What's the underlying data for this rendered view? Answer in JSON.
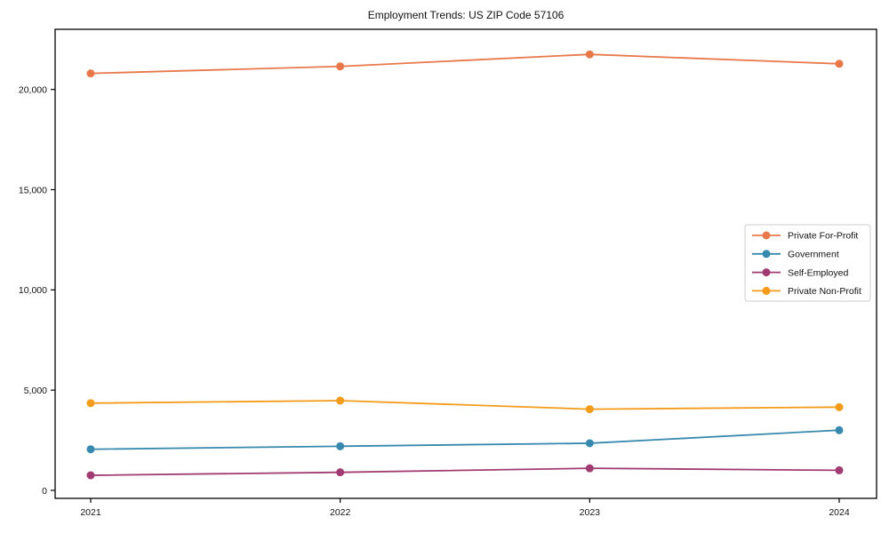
{
  "chart_data": {
    "type": "line",
    "title": "Employment Trends: US ZIP Code 57106",
    "categories": [
      "2021",
      "2022",
      "2023",
      "2024"
    ],
    "series": [
      {
        "name": "Private For-Profit",
        "color": "#E8784A",
        "values": [
          20800,
          21150,
          21750,
          21280
        ]
      },
      {
        "name": "Government",
        "color": "#3789AE",
        "values": [
          2050,
          2200,
          2350,
          3000
        ]
      },
      {
        "name": "Self-Employed",
        "color": "#A23B72",
        "values": [
          750,
          900,
          1100,
          1000
        ]
      },
      {
        "name": "Private Non-Profit",
        "color": "#F49B1A",
        "values": [
          4350,
          4475,
          4050,
          4150
        ]
      }
    ],
    "xlabel": "",
    "ylabel": "",
    "ylim": [
      -400,
      23000
    ],
    "yticks": [
      0,
      5000,
      10000,
      15000,
      20000
    ],
    "ytick_labels": [
      "0",
      "5,000",
      "10,000",
      "15,000",
      "20,000"
    ],
    "legend_position": "center right",
    "grid": false,
    "marker": "circle",
    "axis_color": "#000000",
    "legend_border_color": "#cccccc"
  }
}
